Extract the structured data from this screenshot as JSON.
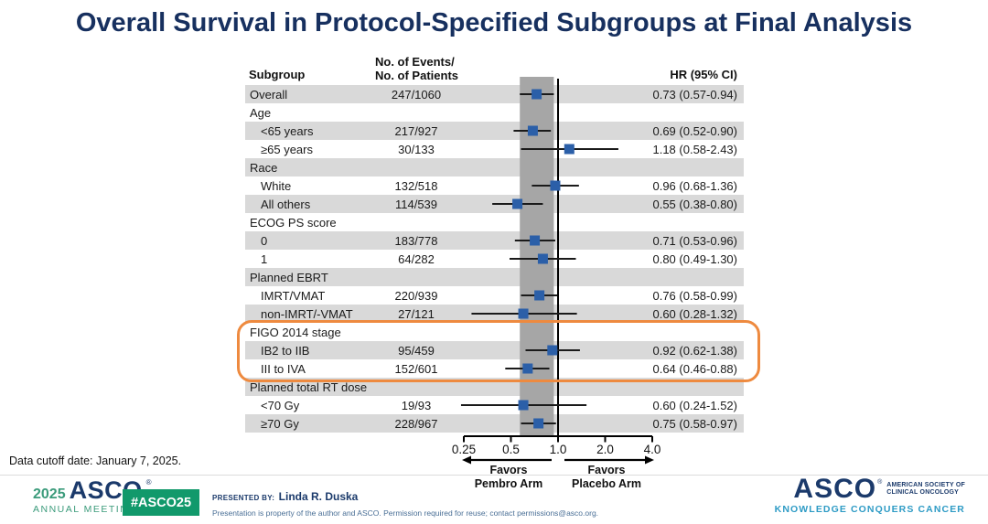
{
  "slide": {
    "title": "Overall Survival in Protocol-Specified Subgroups at Final Analysis"
  },
  "table": {
    "header": {
      "col_subgroup": "Subgroup",
      "col_events_line1": "No. of Events/",
      "col_events_line2": "No. of Patients",
      "col_hr": "HR (95% CI)"
    }
  },
  "chart_data": {
    "type": "forest",
    "x_axis": {
      "scale": "log2",
      "ticks": [
        0.25,
        0.5,
        1.0,
        2.0,
        4.0
      ],
      "tick_labels": [
        "0.25",
        "0.5",
        "1.0",
        "2.0",
        "4.0"
      ],
      "ref_line": 1.0,
      "shaded_band": [
        0.57,
        0.94
      ]
    },
    "favors": {
      "left_line1": "Favors",
      "left_line2": "Pembro Arm",
      "right_line1": "Favors",
      "right_line2": "Placebo Arm"
    },
    "highlight_group": "FIGO 2014 stage",
    "rows": [
      {
        "label": "Overall",
        "indent": false,
        "category": false,
        "events": "247/1060",
        "hr": 0.73,
        "lo": 0.57,
        "hi": 0.94,
        "hr_text": "0.73 (0.57-0.94)"
      },
      {
        "label": "Age",
        "category": true
      },
      {
        "label": "<65 years",
        "indent": true,
        "category": false,
        "events": "217/927",
        "hr": 0.69,
        "lo": 0.52,
        "hi": 0.9,
        "hr_text": "0.69 (0.52-0.90)"
      },
      {
        "label": "≥65 years",
        "indent": true,
        "category": false,
        "events": "30/133",
        "hr": 1.18,
        "lo": 0.58,
        "hi": 2.43,
        "hr_text": "1.18 (0.58-2.43)"
      },
      {
        "label": "Race",
        "category": true
      },
      {
        "label": "White",
        "indent": true,
        "category": false,
        "events": "132/518",
        "hr": 0.96,
        "lo": 0.68,
        "hi": 1.36,
        "hr_text": "0.96 (0.68-1.36)"
      },
      {
        "label": "All others",
        "indent": true,
        "category": false,
        "events": "114/539",
        "hr": 0.55,
        "lo": 0.38,
        "hi": 0.8,
        "hr_text": "0.55 (0.38-0.80)"
      },
      {
        "label": "ECOG PS score",
        "category": true
      },
      {
        "label": "0",
        "indent": true,
        "category": false,
        "events": "183/778",
        "hr": 0.71,
        "lo": 0.53,
        "hi": 0.96,
        "hr_text": "0.71 (0.53-0.96)"
      },
      {
        "label": "1",
        "indent": true,
        "category": false,
        "events": "64/282",
        "hr": 0.8,
        "lo": 0.49,
        "hi": 1.3,
        "hr_text": "0.80 (0.49-1.30)"
      },
      {
        "label": "Planned EBRT",
        "category": true
      },
      {
        "label": "IMRT/VMAT",
        "indent": true,
        "category": false,
        "events": "220/939",
        "hr": 0.76,
        "lo": 0.58,
        "hi": 0.99,
        "hr_text": "0.76 (0.58-0.99)"
      },
      {
        "label": "non-IMRT/-VMAT",
        "indent": true,
        "category": false,
        "events": "27/121",
        "hr": 0.6,
        "lo": 0.28,
        "hi": 1.32,
        "hr_text": "0.60 (0.28-1.32)"
      },
      {
        "label": "FIGO 2014 stage",
        "category": true
      },
      {
        "label": "IB2 to IIB",
        "indent": true,
        "category": false,
        "events": "95/459",
        "hr": 0.92,
        "lo": 0.62,
        "hi": 1.38,
        "hr_text": "0.92 (0.62-1.38)"
      },
      {
        "label": "III to IVA",
        "indent": true,
        "category": false,
        "events": "152/601",
        "hr": 0.64,
        "lo": 0.46,
        "hi": 0.88,
        "hr_text": "0.64 (0.46-0.88)"
      },
      {
        "label": "Planned total RT dose",
        "category": true
      },
      {
        "label": "<70 Gy",
        "indent": true,
        "category": false,
        "events": "19/93",
        "hr": 0.6,
        "lo": 0.24,
        "hi": 1.52,
        "hr_text": "0.60 (0.24-1.52)"
      },
      {
        "label": "≥70 Gy",
        "indent": true,
        "category": false,
        "events": "228/967",
        "hr": 0.75,
        "lo": 0.58,
        "hi": 0.97,
        "hr_text": "0.75 (0.58-0.97)"
      }
    ]
  },
  "footer": {
    "data_cutoff": "Data cutoff date: January 7, 2025.",
    "meeting_year": "2025",
    "meeting_org": "ASCO",
    "meeting_name": "ANNUAL MEETING",
    "hashtag": "#ASCO25",
    "reg_mark": "®",
    "presented_by_label": "PRESENTED BY:",
    "presenter": "Linda R. Duska",
    "disclaimer": "Presentation is property of the author and ASCO. Permission required for reuse; contact permissions@asco.org.",
    "asco_logo": "ASCO",
    "asco_tagline_line1": "AMERICAN SOCIETY OF",
    "asco_tagline_line2": "CLINICAL ONCOLOGY",
    "asco_motto": "KNOWLEDGE CONQUERS CANCER"
  },
  "colors": {
    "title_navy": "#17305F",
    "navy": "#1B3A6B",
    "stripe": "#D9D9D9",
    "band": "#A6A6A6",
    "marker": "#2B5FA8",
    "highlight": "#EE8A3F",
    "green": "#3B9B7B",
    "badge_green": "#11996B",
    "motto_teal": "#2E9BC5"
  }
}
